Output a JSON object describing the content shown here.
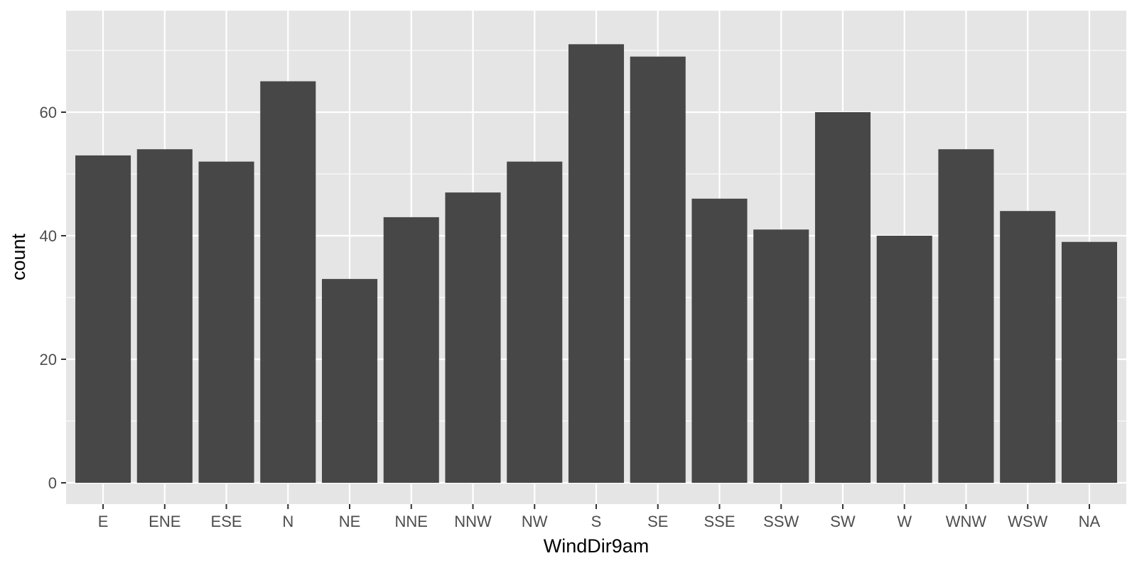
{
  "chart_data": {
    "type": "bar",
    "title": "",
    "xlabel": "WindDir9am",
    "ylabel": "count",
    "categories": [
      "E",
      "ENE",
      "ESE",
      "N",
      "NE",
      "NNE",
      "NNW",
      "NW",
      "S",
      "SE",
      "SSE",
      "SSW",
      "SW",
      "W",
      "WNW",
      "WSW",
      "NA"
    ],
    "values": [
      53,
      54,
      52,
      65,
      33,
      43,
      47,
      52,
      71,
      69,
      46,
      41,
      60,
      40,
      54,
      44,
      39
    ],
    "ylim": [
      0,
      74.55
    ],
    "yticks": [
      0,
      20,
      40,
      60
    ],
    "grid": true,
    "legend": "none",
    "colors": {
      "bar": "#474747",
      "panel": "#e5e5e5",
      "grid": "#ffffff",
      "tick_text": "#4d4d4d",
      "tick_mark": "#333333"
    }
  }
}
